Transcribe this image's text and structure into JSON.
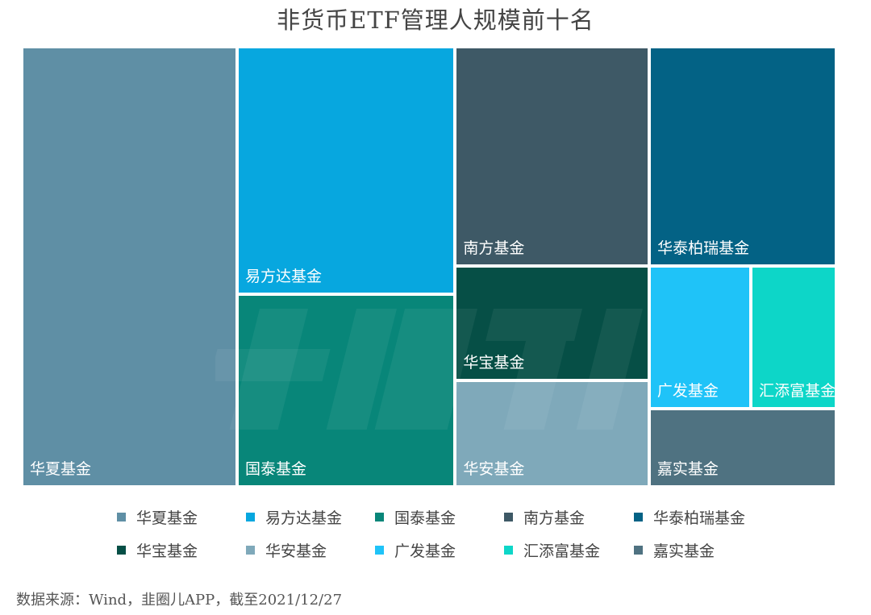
{
  "page": {
    "title": "非货币ETF管理人规模前十名",
    "source": "数据来源：Wind，韭圈儿APP，截至2021/12/27"
  },
  "chart_data": {
    "type": "treemap",
    "title": "非货币ETF管理人规模前十名",
    "items": [
      {
        "name": "华夏基金",
        "value": 1457,
        "color": "#5f8fa5"
      },
      {
        "name": "易方达基金",
        "value": 830,
        "color": "#07a7df"
      },
      {
        "name": "国泰基金",
        "value": 645,
        "color": "#088679"
      },
      {
        "name": "南方基金",
        "value": 654,
        "color": "#3e5966"
      },
      {
        "name": "华泰柏瑞基金",
        "value": 630,
        "color": "#036285"
      },
      {
        "name": "华宝基金",
        "value": 342,
        "color": "#064f46"
      },
      {
        "name": "华安基金",
        "value": 317,
        "color": "#7fa9ba"
      },
      {
        "name": "广发基金",
        "value": 224,
        "color": "#1fc3f8"
      },
      {
        "name": "汇添富基金",
        "value": 188,
        "color": "#0dd6c8"
      },
      {
        "name": "嘉实基金",
        "value": 224,
        "color": "#4f7281"
      }
    ],
    "legend_position": "bottom"
  }
}
